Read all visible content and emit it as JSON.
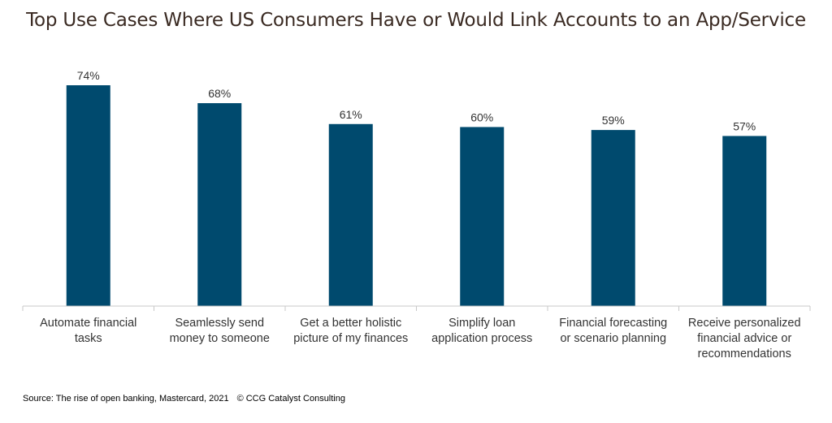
{
  "chart_data": {
    "type": "bar",
    "title": "Top Use Cases Where US Consumers Have or Would Link Accounts to an App/Service",
    "categories": [
      [
        "Automate financial",
        "tasks"
      ],
      [
        "Seamlessly send",
        "money to someone"
      ],
      [
        "Get a better holistic",
        "picture of my finances"
      ],
      [
        "Simplify loan",
        "application process"
      ],
      [
        "Financial forecasting",
        "or scenario planning"
      ],
      [
        "Receive personalized",
        "financial advice or",
        "recommendations"
      ]
    ],
    "values": [
      74,
      68,
      61,
      60,
      59,
      57
    ],
    "value_labels": [
      "74%",
      "68%",
      "61%",
      "60%",
      "59%",
      "57%"
    ],
    "unit": "%",
    "ylim": [
      0,
      80
    ],
    "grid": false,
    "bar_color": "#004a6e",
    "axis_color": "#c8c8c8",
    "label_color": "#333333"
  },
  "footer": {
    "source": "Source: The rise of open banking, Mastercard, 2021",
    "copyright": "© CCG Catalyst Consulting"
  }
}
